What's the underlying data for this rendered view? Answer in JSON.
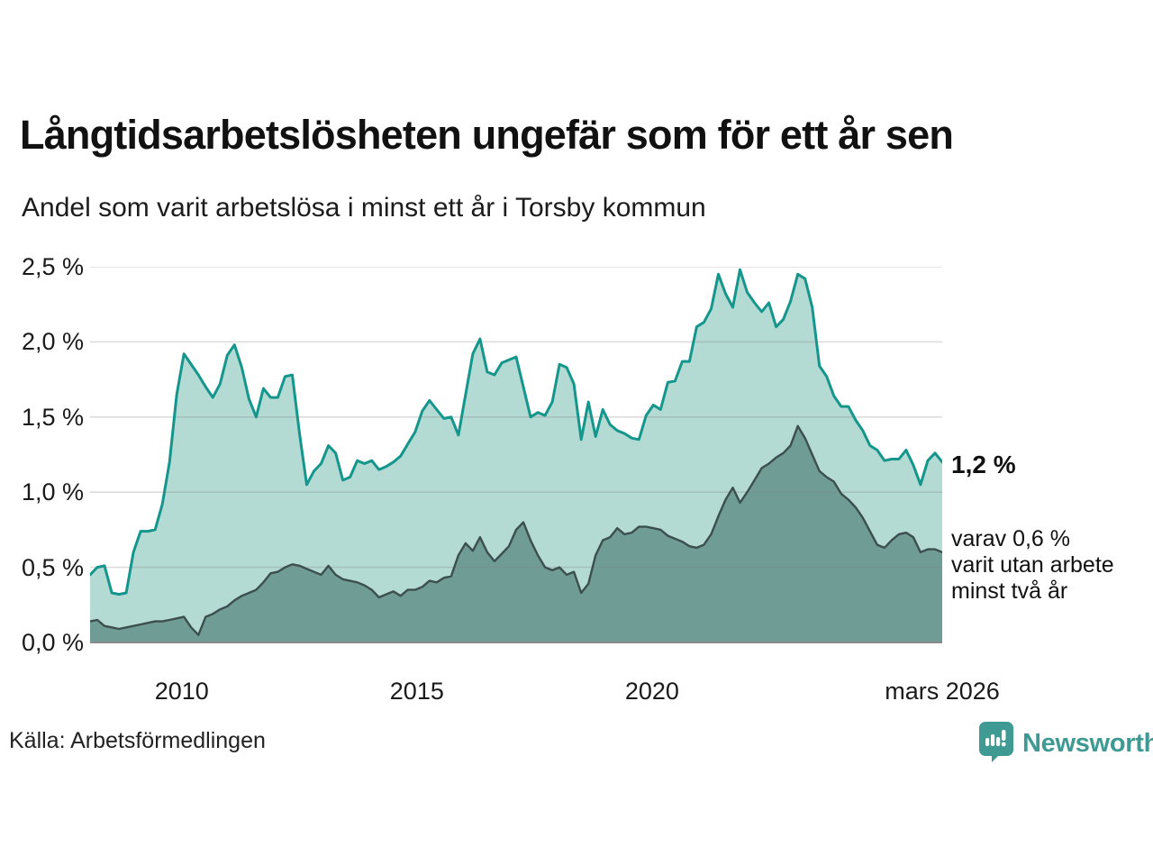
{
  "header": {
    "title": "Långtidsarbetslösheten ungefär som för ett år sen",
    "subtitle": "Andel som varit arbetslösa i minst ett år i Torsby kommun"
  },
  "chart_data": {
    "type": "area",
    "title": "Långtidsarbetslösheten ungefär som för ett år sen",
    "subtitle": "Andel som varit arbetslösa i minst ett år i Torsby kommun",
    "unit": "%",
    "x_start": 2008.05,
    "x_end": 2026.17,
    "x_ticks": [
      {
        "year": 2010,
        "label": "2010"
      },
      {
        "year": 2015,
        "label": "2015"
      },
      {
        "year": 2020,
        "label": "2020"
      },
      {
        "year": 2026.17,
        "label": "mars 2026"
      }
    ],
    "ylim": [
      0,
      2.5
    ],
    "y_ticks": [
      {
        "value": 0.0,
        "label": "0,0 %"
      },
      {
        "value": 0.5,
        "label": "0,5 %"
      },
      {
        "value": 1.0,
        "label": "1,0 %"
      },
      {
        "value": 1.5,
        "label": "1,5 %"
      },
      {
        "value": 2.0,
        "label": "2,0 %"
      },
      {
        "value": 2.5,
        "label": "2,5 %"
      }
    ],
    "grid": true,
    "grid_color": "rgba(130,130,130,0.28)",
    "axis_color": "#8a8a8a",
    "series": [
      {
        "name": "arbetslösa minst ett år",
        "line_color": "#14968c",
        "fill_color": "#b4dad4",
        "line_width": 3,
        "latest_label": "1,2 %",
        "values": [
          0.45,
          0.5,
          0.51,
          0.33,
          0.32,
          0.33,
          0.6,
          0.74,
          0.74,
          0.75,
          0.92,
          1.2,
          1.65,
          1.92,
          1.85,
          1.78,
          1.7,
          1.63,
          1.72,
          1.91,
          1.98,
          1.83,
          1.62,
          1.5,
          1.69,
          1.63,
          1.63,
          1.77,
          1.78,
          1.39,
          1.05,
          1.14,
          1.19,
          1.31,
          1.26,
          1.08,
          1.1,
          1.21,
          1.19,
          1.21,
          1.15,
          1.17,
          1.2,
          1.24,
          1.32,
          1.4,
          1.54,
          1.61,
          1.55,
          1.49,
          1.5,
          1.38,
          1.65,
          1.92,
          2.02,
          1.8,
          1.78,
          1.86,
          1.88,
          1.9,
          1.7,
          1.5,
          1.53,
          1.51,
          1.6,
          1.85,
          1.83,
          1.72,
          1.35,
          1.6,
          1.37,
          1.55,
          1.45,
          1.41,
          1.39,
          1.36,
          1.35,
          1.51,
          1.58,
          1.55,
          1.73,
          1.74,
          1.87,
          1.87,
          2.1,
          2.13,
          2.22,
          2.45,
          2.32,
          2.23,
          2.48,
          2.33,
          2.26,
          2.2,
          2.26,
          2.1,
          2.15,
          2.27,
          2.45,
          2.42,
          2.23,
          1.84,
          1.77,
          1.64,
          1.57,
          1.57,
          1.48,
          1.41,
          1.31,
          1.28,
          1.21,
          1.22,
          1.22,
          1.28,
          1.18,
          1.05,
          1.21,
          1.26,
          1.2
        ]
      },
      {
        "name": "utan arbete minst två år",
        "line_color": "#3c4f4e",
        "fill_color": "#6f9d96",
        "line_width": 2.4,
        "latest_label": "varav 0,6 %",
        "values": [
          0.14,
          0.15,
          0.11,
          0.1,
          0.09,
          0.1,
          0.11,
          0.12,
          0.13,
          0.14,
          0.14,
          0.15,
          0.16,
          0.17,
          0.1,
          0.05,
          0.17,
          0.19,
          0.22,
          0.24,
          0.28,
          0.31,
          0.33,
          0.35,
          0.4,
          0.46,
          0.47,
          0.5,
          0.52,
          0.51,
          0.49,
          0.47,
          0.45,
          0.51,
          0.45,
          0.42,
          0.41,
          0.4,
          0.38,
          0.35,
          0.3,
          0.32,
          0.34,
          0.31,
          0.35,
          0.35,
          0.37,
          0.41,
          0.4,
          0.43,
          0.44,
          0.58,
          0.66,
          0.61,
          0.7,
          0.6,
          0.54,
          0.59,
          0.64,
          0.75,
          0.8,
          0.68,
          0.58,
          0.5,
          0.48,
          0.5,
          0.45,
          0.47,
          0.33,
          0.39,
          0.58,
          0.68,
          0.7,
          0.76,
          0.72,
          0.73,
          0.77,
          0.77,
          0.76,
          0.75,
          0.71,
          0.69,
          0.67,
          0.64,
          0.63,
          0.65,
          0.72,
          0.84,
          0.95,
          1.03,
          0.93,
          1.0,
          1.08,
          1.16,
          1.19,
          1.23,
          1.26,
          1.31,
          1.44,
          1.36,
          1.25,
          1.14,
          1.1,
          1.07,
          0.99,
          0.95,
          0.9,
          0.83,
          0.74,
          0.65,
          0.63,
          0.68,
          0.72,
          0.73,
          0.7,
          0.6,
          0.62,
          0.62,
          0.6
        ]
      }
    ]
  },
  "annotation": {
    "value": "1,2 %",
    "sub_line1": "varav 0,6 %",
    "sub_line2": "varit utan arbete",
    "sub_line3": "minst två år"
  },
  "footer": {
    "source": "Källa: Arbetsförmedlingen",
    "logo_text": "Newsworthy",
    "logo_color": "#3e9a93"
  }
}
